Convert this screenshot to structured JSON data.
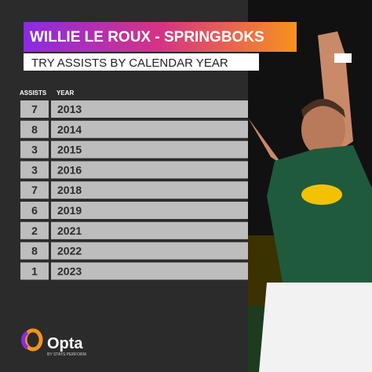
{
  "header": {
    "title": "WILLIE LE ROUX - SPRINGBOKS",
    "subtitle": "TRY ASSISTS BY CALENDAR YEAR"
  },
  "table": {
    "columns": [
      "ASSISTS",
      "YEAR"
    ],
    "rows": [
      [
        7,
        2013
      ],
      [
        8,
        2014
      ],
      [
        3,
        2015
      ],
      [
        3,
        2016
      ],
      [
        7,
        2018
      ],
      [
        6,
        2019
      ],
      [
        2,
        2021
      ],
      [
        8,
        2022
      ],
      [
        1,
        2023
      ]
    ]
  },
  "footer": {
    "logo": "Opta",
    "byline": "BY STATS PERFORM"
  }
}
